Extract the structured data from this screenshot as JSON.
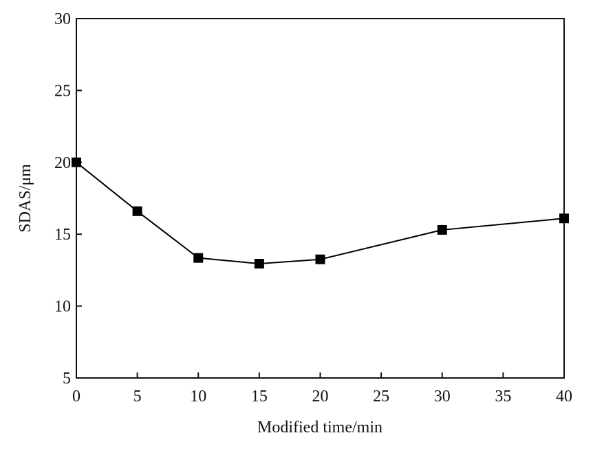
{
  "chart_data": {
    "type": "line",
    "x_label": "Modified time/min",
    "y_label": "SDAS/μm",
    "x": [
      0,
      5,
      10,
      15,
      20,
      30,
      40
    ],
    "values": [
      20.0,
      16.6,
      13.35,
      12.95,
      13.25,
      15.3,
      16.1
    ],
    "color": "#000000",
    "marker": "square",
    "xlim": [
      0,
      40
    ],
    "xticks": [
      0,
      5,
      10,
      15,
      20,
      25,
      30,
      35,
      40
    ],
    "ylim": [
      5,
      30
    ],
    "yticks": [
      5,
      10,
      15,
      20,
      25,
      30
    ]
  }
}
